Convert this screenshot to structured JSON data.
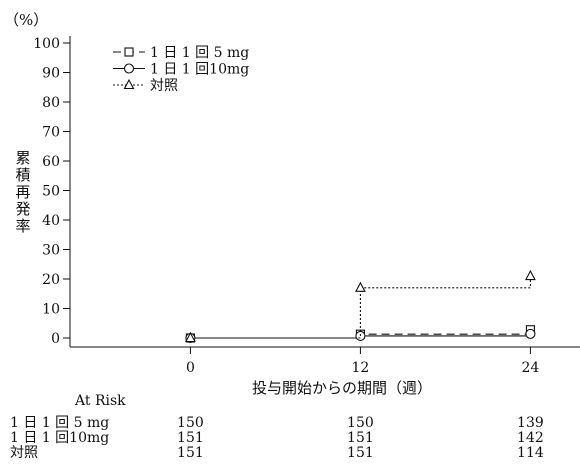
{
  "chart_data": {
    "type": "line",
    "y_unit": "（%）",
    "ylabel": "累積再発率",
    "xlabel": "投与開始からの期間（週）",
    "x": [
      0,
      12,
      24
    ],
    "x_ticks": [
      "0",
      "12",
      "24"
    ],
    "xlim": [
      -8.5,
      27.5
    ],
    "ylim": [
      0,
      100
    ],
    "y_ticks": [
      "0",
      "10",
      "20",
      "30",
      "40",
      "50",
      "60",
      "70",
      "80",
      "90",
      "100"
    ],
    "grid": false,
    "legend_position": "top-left",
    "series": [
      {
        "name": "1 日 1 回 5 mg",
        "marker": "square",
        "dash": "8,5",
        "values": [
          0,
          1.3,
          2.8
        ]
      },
      {
        "name": "1 日 1 回10mg",
        "marker": "circle",
        "dash": "",
        "values": [
          0,
          0.7,
          1.4
        ]
      },
      {
        "name": "対照",
        "marker": "triangle",
        "dash": "2,2",
        "values": [
          0,
          17,
          21
        ]
      }
    ],
    "at_risk": {
      "title": "At Risk",
      "rows": [
        {
          "label": "1 日 1 回 5 mg",
          "values": [
            "150",
            "150",
            "139"
          ]
        },
        {
          "label": "1 日 1 回10mg",
          "values": [
            "151",
            "151",
            "142"
          ]
        },
        {
          "label": "対照",
          "values": [
            "151",
            "151",
            "114"
          ]
        }
      ]
    }
  }
}
